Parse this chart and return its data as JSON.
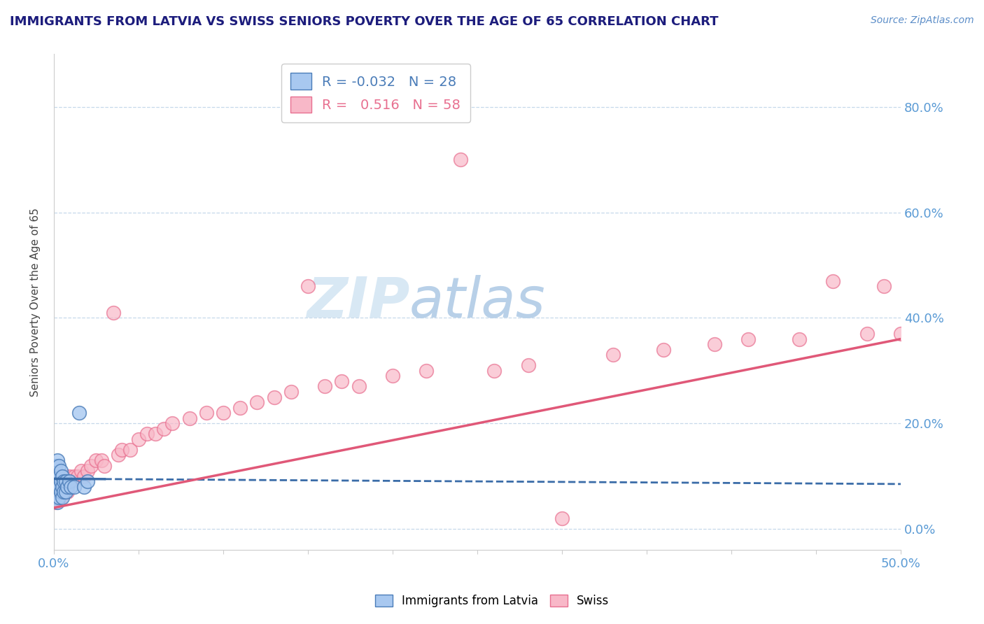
{
  "title": "IMMIGRANTS FROM LATVIA VS SWISS SENIORS POVERTY OVER THE AGE OF 65 CORRELATION CHART",
  "source_text": "Source: ZipAtlas.com",
  "ylabel": "Seniors Poverty Over the Age of 65",
  "xlim": [
    0.0,
    0.5
  ],
  "ylim": [
    -0.04,
    0.9
  ],
  "xticks": [
    0.0,
    0.05,
    0.1,
    0.15,
    0.2,
    0.25,
    0.3,
    0.35,
    0.4,
    0.45,
    0.5
  ],
  "xtick_labels": [
    "0.0%",
    "",
    "",
    "",
    "",
    "",
    "",
    "",
    "",
    "",
    "50.0%"
  ],
  "yticks_right": [
    0.0,
    0.2,
    0.4,
    0.6,
    0.8
  ],
  "ytick_right_labels": [
    "0.0%",
    "20.0%",
    "40.0%",
    "60.0%",
    "80.0%"
  ],
  "legend_r1": "R = -0.032",
  "legend_n1": "N = 28",
  "legend_r2": "R =  0.516",
  "legend_n2": "N = 58",
  "color_blue_fill": "#A8C8F0",
  "color_blue_edge": "#4A7CB8",
  "color_blue_line": "#3A6CA8",
  "color_pink_fill": "#F8B8C8",
  "color_pink_edge": "#E87090",
  "color_pink_line": "#E05878",
  "color_title": "#1C1C7C",
  "color_source": "#5B8DC8",
  "color_grid": "#C0D4E8",
  "watermark_color": "#D8E8F4",
  "background_color": "#FFFFFF",
  "latvia_x": [
    0.001,
    0.001,
    0.001,
    0.002,
    0.002,
    0.002,
    0.002,
    0.003,
    0.003,
    0.003,
    0.003,
    0.004,
    0.004,
    0.004,
    0.005,
    0.005,
    0.005,
    0.006,
    0.006,
    0.007,
    0.007,
    0.008,
    0.009,
    0.01,
    0.012,
    0.015,
    0.018,
    0.02
  ],
  "latvia_y": [
    0.06,
    0.09,
    0.12,
    0.05,
    0.08,
    0.1,
    0.13,
    0.06,
    0.08,
    0.1,
    0.12,
    0.07,
    0.09,
    0.11,
    0.06,
    0.08,
    0.1,
    0.07,
    0.09,
    0.07,
    0.09,
    0.08,
    0.09,
    0.08,
    0.08,
    0.22,
    0.08,
    0.09
  ],
  "swiss_x": [
    0.001,
    0.001,
    0.002,
    0.002,
    0.003,
    0.003,
    0.004,
    0.004,
    0.005,
    0.006,
    0.007,
    0.008,
    0.009,
    0.01,
    0.012,
    0.014,
    0.016,
    0.018,
    0.02,
    0.022,
    0.025,
    0.028,
    0.03,
    0.035,
    0.038,
    0.04,
    0.045,
    0.05,
    0.055,
    0.06,
    0.065,
    0.07,
    0.08,
    0.09,
    0.1,
    0.11,
    0.12,
    0.13,
    0.14,
    0.15,
    0.16,
    0.17,
    0.18,
    0.2,
    0.22,
    0.24,
    0.26,
    0.28,
    0.3,
    0.33,
    0.36,
    0.39,
    0.41,
    0.44,
    0.46,
    0.48,
    0.49,
    0.5
  ],
  "swiss_y": [
    0.05,
    0.08,
    0.06,
    0.09,
    0.07,
    0.1,
    0.06,
    0.09,
    0.08,
    0.09,
    0.1,
    0.07,
    0.1,
    0.09,
    0.1,
    0.1,
    0.11,
    0.1,
    0.11,
    0.12,
    0.13,
    0.13,
    0.12,
    0.41,
    0.14,
    0.15,
    0.15,
    0.17,
    0.18,
    0.18,
    0.19,
    0.2,
    0.21,
    0.22,
    0.22,
    0.23,
    0.24,
    0.25,
    0.26,
    0.46,
    0.27,
    0.28,
    0.27,
    0.29,
    0.3,
    0.7,
    0.3,
    0.31,
    0.02,
    0.33,
    0.34,
    0.35,
    0.36,
    0.36,
    0.47,
    0.37,
    0.46,
    0.37
  ],
  "lv_line_y0": 0.095,
  "lv_line_y1": 0.085,
  "sw_line_y0": 0.04,
  "sw_line_y1": 0.36
}
